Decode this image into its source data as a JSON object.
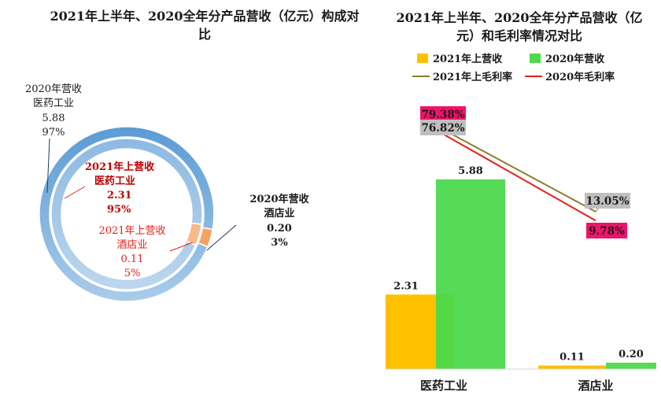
{
  "left_chart": {
    "title": "2021年上半年、2020全年分产品营收（亿元）构成对比",
    "outer_ring_label": {
      "series": "2020年营收",
      "category": "医药工业",
      "value": "5.88",
      "percent": "97%"
    },
    "inner_ring_label": {
      "series": "2021年上营收",
      "category": "医药工业",
      "value": "2.31",
      "percent": "95%"
    },
    "inner_small_label": {
      "series": "2021年上营收",
      "category": "酒店业",
      "value": "0.11",
      "percent": "5%"
    },
    "outer_small_label": {
      "series": "2020年营收",
      "category": "酒店业",
      "value": "0.20",
      "percent": "3%"
    }
  },
  "right_chart": {
    "title": "2021年上半年、2020全年分产品营收（亿元）和毛利率情况对比",
    "legend": [
      {
        "key": "rev2021h1",
        "label": "2021年上营收",
        "color": "#FFC000",
        "type": "bar"
      },
      {
        "key": "rev2020",
        "label": "2020年营收",
        "color": "#4CD94C",
        "type": "bar"
      },
      {
        "key": "gm2021h1",
        "label": "2021年上毛利率",
        "color": "#8B7D2E",
        "type": "line"
      },
      {
        "key": "gm2020",
        "label": "2020年毛利率",
        "color": "#E8201A",
        "type": "line"
      }
    ],
    "categories": [
      "医药工业",
      "酒店业"
    ]
  },
  "chart_data": [
    {
      "type": "pie",
      "title": "2021年上半年、2020全年分产品营收（亿元）构成对比",
      "categories": [
        "医药工业",
        "酒店业"
      ],
      "series": [
        {
          "name": "2020年营收",
          "values": [
            5.88,
            0.2
          ],
          "percents": [
            97,
            3
          ]
        },
        {
          "name": "2021年上营收",
          "values": [
            2.31,
            0.11
          ],
          "percents": [
            95,
            5
          ]
        }
      ]
    },
    {
      "type": "bar",
      "title": "2021年上半年、2020全年分产品营收（亿元）和毛利率情况对比",
      "categories": [
        "医药工业",
        "酒店业"
      ],
      "series": [
        {
          "name": "2021年上营收",
          "values": [
            2.31,
            0.11
          ],
          "labels": [
            "2.31",
            "0.11"
          ]
        },
        {
          "name": "2020年营收",
          "values": [
            5.88,
            0.2
          ],
          "labels": [
            "5.88",
            "0.20"
          ]
        },
        {
          "name": "2021年上毛利率",
          "values": [
            76.82,
            13.05
          ],
          "labels": [
            "76.82%",
            "13.05%"
          ]
        },
        {
          "name": "2020年毛利率",
          "values": [
            79.38,
            9.78
          ],
          "labels": [
            "79.38%",
            "9.78%"
          ]
        }
      ]
    }
  ]
}
